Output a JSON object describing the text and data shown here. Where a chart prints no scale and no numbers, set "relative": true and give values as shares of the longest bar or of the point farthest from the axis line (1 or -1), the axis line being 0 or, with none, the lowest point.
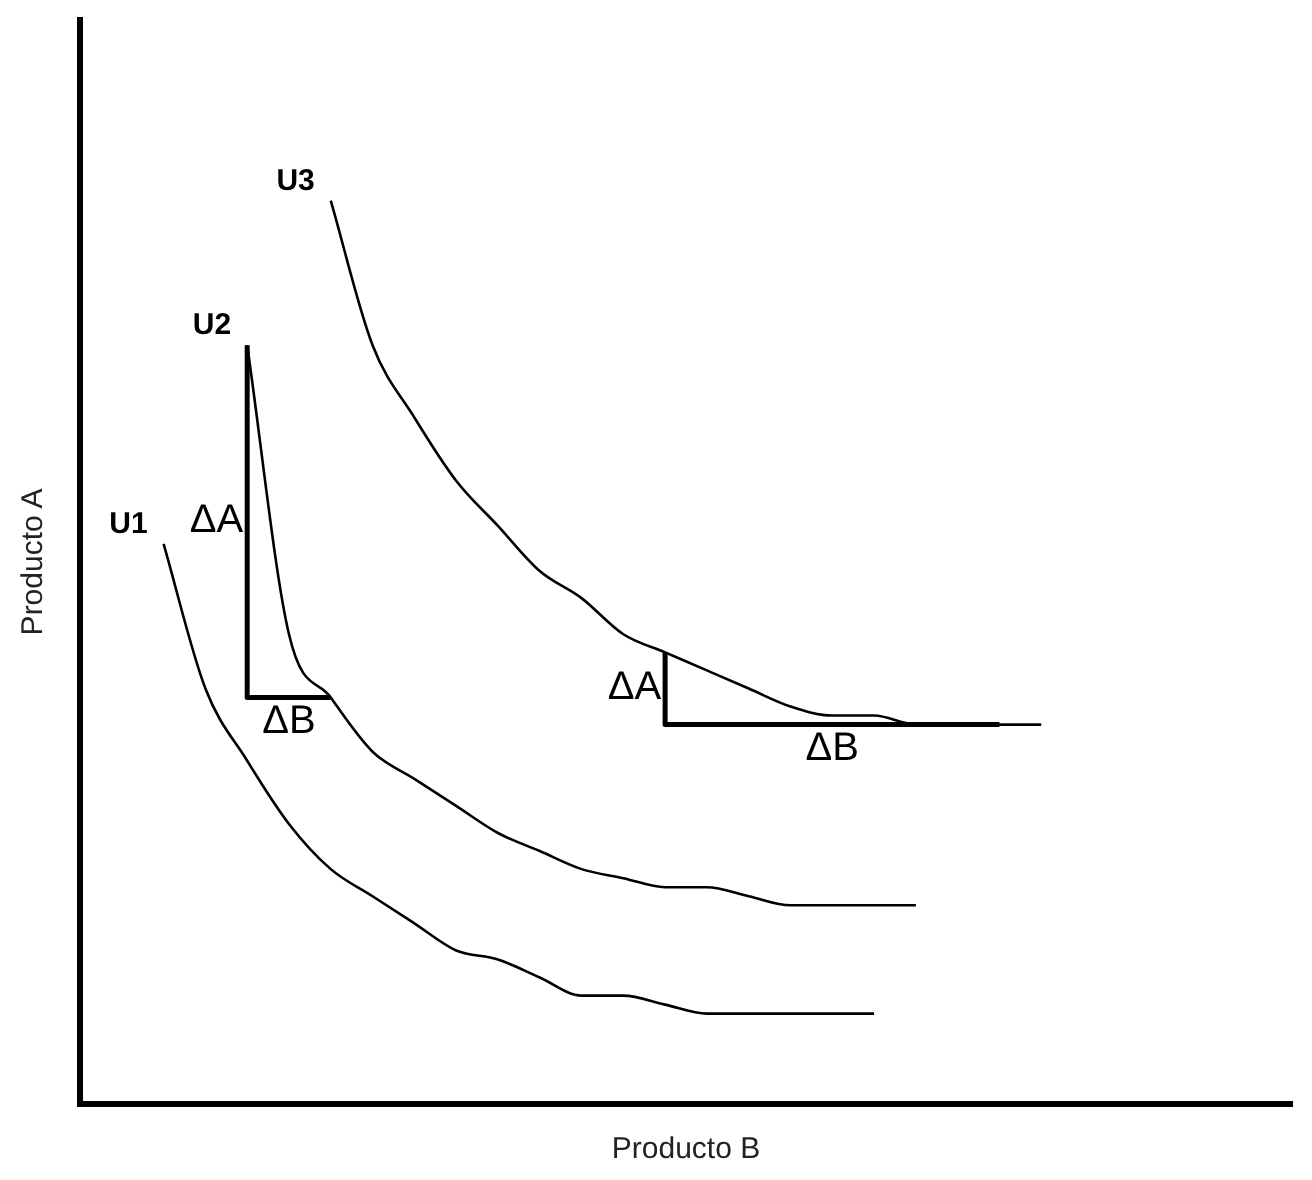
{
  "chart_data": {
    "type": "line",
    "relative": true,
    "xlabel": "Producto B",
    "ylabel": "Producto A",
    "categories": [
      null,
      null,
      null,
      null,
      null,
      null,
      null,
      null,
      null,
      null,
      null,
      null,
      null,
      null,
      null,
      null,
      null,
      null,
      null,
      null,
      null,
      null,
      null,
      null,
      null,
      null,
      null,
      null,
      null,
      null
    ],
    "series": [
      {
        "name": "U1",
        "color": "#000000",
        "values": [
          null,
          null,
          0.62,
          0.46,
          0.38,
          0.31,
          0.26,
          0.23,
          0.2,
          0.17,
          0.16,
          0.14,
          0.12,
          0.12,
          0.11,
          0.1,
          0.1,
          0.1,
          0.1,
          0.1,
          null,
          null,
          null,
          null,
          null,
          null,
          null,
          null,
          null,
          null
        ]
      },
      {
        "name": "U2",
        "color": "#000000",
        "values": [
          null,
          null,
          null,
          null,
          0.84,
          0.52,
          0.45,
          0.39,
          0.36,
          0.33,
          0.3,
          0.28,
          0.26,
          0.25,
          0.24,
          0.24,
          0.23,
          0.22,
          0.22,
          0.22,
          0.22,
          null,
          null,
          null,
          null,
          null,
          null,
          null,
          null,
          null
        ]
      },
      {
        "name": "U3",
        "color": "#000000",
        "values": [
          null,
          null,
          null,
          null,
          null,
          null,
          1,
          0.84,
          0.76,
          0.69,
          0.64,
          0.59,
          0.56,
          0.52,
          0.5,
          0.48,
          0.46,
          0.44,
          0.43,
          0.43,
          0.42,
          0.42,
          0.42,
          0.42,
          null,
          null,
          null,
          null,
          null,
          null
        ]
      }
    ],
    "annotations": [
      "ΔA",
      "ΔB",
      "ΔA",
      "ΔB"
    ],
    "legend": false,
    "grid": false,
    "marker": "none",
    "line_style": "solid",
    "tick_labels": false
  }
}
